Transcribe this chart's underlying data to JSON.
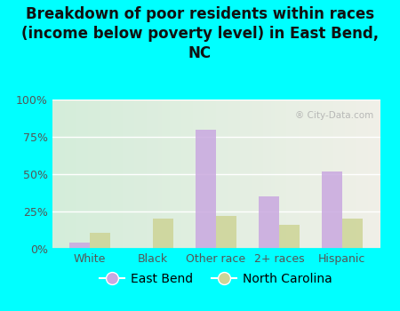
{
  "title": "Breakdown of poor residents within races\n(income below poverty level) in East Bend,\nNC",
  "categories": [
    "White",
    "Black",
    "Other race",
    "2+ races",
    "Hispanic"
  ],
  "east_bend": [
    4,
    0,
    80,
    35,
    52
  ],
  "north_carolina": [
    11,
    20,
    22,
    16,
    20
  ],
  "color_east_bend": "#c9a8e0",
  "color_nc": "#cdd496",
  "background_fig": "#00ffff",
  "background_plot_left": "#d4edda",
  "background_plot_right": "#f0f0e8",
  "ylim": [
    0,
    100
  ],
  "yticks": [
    0,
    25,
    50,
    75,
    100
  ],
  "ytick_labels": [
    "0%",
    "25%",
    "50%",
    "75%",
    "100%"
  ],
  "bar_width": 0.32,
  "legend_east_bend": "East Bend",
  "legend_nc": "North Carolina",
  "title_fontsize": 12,
  "tick_fontsize": 9,
  "legend_fontsize": 10,
  "watermark": "City-Data.com",
  "watermark_color": "#aaaaaa"
}
